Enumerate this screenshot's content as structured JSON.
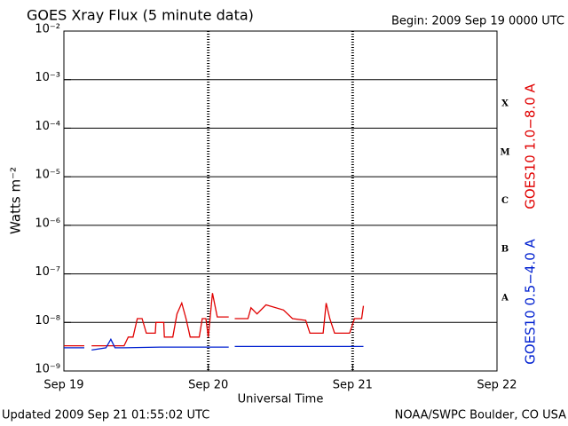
{
  "chart_data": {
    "type": "line",
    "title": "GOES Xray Flux (5 minute data)",
    "subtitle": "Begin:  2009 Sep 19 0000 UTC",
    "y_label": "Watts m⁻²",
    "x_label": "Universal Time",
    "footer_left": "Updated 2009 Sep 21 01:55:02 UTC",
    "footer_right": "NOAA/SWPC Boulder, CO USA",
    "flare_classes": [
      "X",
      "M",
      "C",
      "B",
      "A"
    ],
    "log_y": true,
    "grid": true,
    "legend": "right",
    "xlim": [
      0,
      72
    ],
    "xticks": [
      {
        "value": 0,
        "label": "Sep 19"
      },
      {
        "value": 24,
        "label": "Sep 20"
      },
      {
        "value": 48,
        "label": "Sep 21"
      },
      {
        "value": 72,
        "label": "Sep 22"
      }
    ],
    "ylim": [
      1e-09,
      0.01
    ],
    "yticks": [
      {
        "value": 1e-09,
        "label": "10⁻⁹"
      },
      {
        "value": 1e-08,
        "label": "10⁻⁸"
      },
      {
        "value": 1e-07,
        "label": "10⁻⁷"
      },
      {
        "value": 1e-06,
        "label": "10⁻⁶"
      },
      {
        "value": 1e-05,
        "label": "10⁻⁵"
      },
      {
        "value": 0.0001,
        "label": "10⁻⁴"
      },
      {
        "value": 0.001,
        "label": "10⁻³"
      },
      {
        "value": 0.01,
        "label": "10⁻²"
      }
    ],
    "series": [
      {
        "name": "GOES10 1.0−8.0 A",
        "color": "#e00000",
        "x": [
          0,
          3.4,
          4,
          4.6,
          10,
          10.7,
          11.5,
          12.2,
          13,
          13.7,
          15.2,
          15.3,
          16.6,
          16.7,
          18.1,
          18.8,
          19.6,
          20.3,
          21,
          22.5,
          23,
          23.6,
          24,
          24.7,
          25.5,
          27.4,
          28,
          28.4,
          30.6,
          31.1,
          32.1,
          33.6,
          36.5,
          38,
          40.2,
          40.9,
          43.1,
          43.6,
          44.2,
          45,
          47.5,
          48.3,
          49.5,
          49.8
        ],
        "values": [
          3.3e-09,
          3.3e-09,
          null,
          3.3e-09,
          3.3e-09,
          5e-09,
          5e-09,
          1.2e-08,
          1.2e-08,
          6e-09,
          6e-09,
          1e-08,
          1e-08,
          5e-09,
          5e-09,
          1.5e-08,
          2.5e-08,
          1.2e-08,
          5e-09,
          5e-09,
          1.2e-08,
          1.2e-08,
          5e-09,
          4e-08,
          1.3e-08,
          1.3e-08,
          null,
          1.2e-08,
          1.2e-08,
          2e-08,
          1.5e-08,
          2.3e-08,
          1.8e-08,
          1.2e-08,
          1.1e-08,
          6e-09,
          6e-09,
          2.5e-08,
          1.2e-08,
          6e-09,
          6e-09,
          1.2e-08,
          1.2e-08,
          2.2e-08
        ]
      },
      {
        "name": "GOES10 0.5−4.0 A",
        "color": "#0020d0",
        "x": [
          0,
          3.4,
          4,
          4.6,
          7,
          7.8,
          8.5,
          10,
          16,
          27.4,
          28,
          28.4,
          49.8
        ],
        "values": [
          3e-09,
          3e-09,
          null,
          2.7e-09,
          3e-09,
          4.5e-09,
          3e-09,
          3e-09,
          3.1e-09,
          3.1e-09,
          null,
          3.2e-09,
          3.2e-09
        ]
      }
    ]
  }
}
